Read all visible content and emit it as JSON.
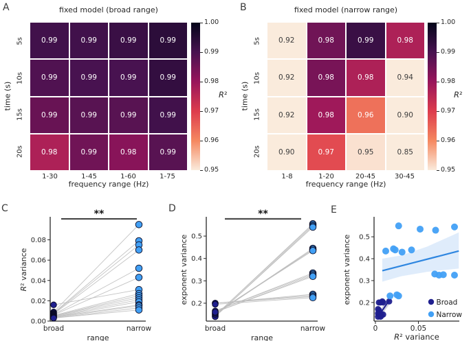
{
  "colors": {
    "broad_navy": "#20208f",
    "narrow_blue": "#42a0f5",
    "dot_edge": "#0b0b25",
    "pair_line": "#bdbdbd",
    "regression_blue": "#2e86e0",
    "band_blue": "rgba(80,150,235,0.18)",
    "broad_band_gray": "rgba(130,130,160,0.35)",
    "axis_dark": "#262626",
    "sig_black": "#000000",
    "sig_gray": "#4d4d4d",
    "annot_light": "#ffffff",
    "annot_dark": "#3c3c3c",
    "rocket_stops": [
      "#030519",
      "#481250",
      "#98155b",
      "#dd3c4d",
      "#f58860",
      "#faebdc"
    ]
  },
  "chart_data": [
    {
      "type": "heatmap",
      "panel": "A",
      "title": "fixed model (broad range)",
      "xlabel": "frequency range (Hz)",
      "ylabel": "time (s)",
      "row_labels": [
        "5s",
        "10s",
        "15s",
        "20s"
      ],
      "col_labels": [
        "1-30",
        "1-45",
        "1-60",
        "1-75"
      ],
      "values": [
        [
          "0.99",
          "0.99",
          "0.99",
          "0.99"
        ],
        [
          "0.99",
          "0.99",
          "0.99",
          "0.99"
        ],
        [
          "0.99",
          "0.99",
          "0.99",
          "0.99"
        ],
        [
          "0.98",
          "0.99",
          "0.98",
          "0.99"
        ]
      ],
      "color_values": [
        [
          0.991,
          0.991,
          0.992,
          0.994
        ],
        [
          0.989,
          0.99,
          0.99,
          0.993
        ],
        [
          0.986,
          0.988,
          0.988,
          0.991
        ],
        [
          0.977,
          0.985,
          0.982,
          0.988
        ]
      ],
      "colorbar": {
        "ticks": [
          "1.00",
          "0.99",
          "0.98",
          "0.97",
          "0.96",
          "0.95"
        ],
        "label": "R²",
        "vmin": 0.95,
        "vmax": 1.0
      }
    },
    {
      "type": "heatmap",
      "panel": "B",
      "title": "fixed model (narrow range)",
      "xlabel": "frequency range (Hz)",
      "ylabel": "time (s)",
      "row_labels": [
        "5s",
        "10s",
        "15s",
        "20s"
      ],
      "col_labels": [
        "1-8",
        "1-20",
        "20-45",
        "30-45"
      ],
      "values": [
        [
          "0.92",
          "0.98",
          "0.99",
          "0.98"
        ],
        [
          "0.92",
          "0.98",
          "0.98",
          "0.94"
        ],
        [
          "0.92",
          "0.98",
          "0.96",
          "0.90"
        ],
        [
          "0.90",
          "0.97",
          "0.95",
          "0.85"
        ]
      ],
      "color_values": [
        [
          0.92,
          0.985,
          0.992,
          0.977
        ],
        [
          0.92,
          0.984,
          0.977,
          0.94
        ],
        [
          0.92,
          0.979,
          0.963,
          0.9
        ],
        [
          0.9,
          0.968,
          0.951,
          0.85
        ]
      ],
      "colorbar": {
        "ticks": [
          "1.00",
          "0.99",
          "0.98",
          "0.97",
          "0.96",
          "0.95"
        ],
        "label": "R²",
        "vmin": 0.95,
        "vmax": 1.0
      }
    },
    {
      "type": "paired-line",
      "panel": "C",
      "ylabel": "R² variance",
      "xlabel": "range",
      "categories": [
        "broad",
        "narrow"
      ],
      "significance": "**",
      "yticks": [
        0.0,
        0.02,
        0.04,
        0.06,
        0.08
      ],
      "ylim": [
        0,
        0.1013
      ],
      "pairs": [
        [
          0.016,
          0.031
        ],
        [
          0.009,
          0.095
        ],
        [
          0.008,
          0.079
        ],
        [
          0.0075,
          0.075
        ],
        [
          0.007,
          0.07
        ],
        [
          0.0065,
          0.052
        ],
        [
          0.006,
          0.043
        ],
        [
          0.0055,
          0.027
        ],
        [
          0.005,
          0.025
        ],
        [
          0.005,
          0.023
        ],
        [
          0.0045,
          0.021
        ],
        [
          0.004,
          0.019
        ],
        [
          0.004,
          0.016
        ],
        [
          0.0035,
          0.015
        ],
        [
          0.003,
          0.013
        ],
        [
          0.003,
          0.011
        ]
      ]
    },
    {
      "type": "paired-line",
      "panel": "D",
      "ylabel": "exponent variance",
      "xlabel": "range",
      "categories": [
        "broad",
        "narrow"
      ],
      "significance": "**",
      "yticks": [
        0.2,
        0.3,
        0.4,
        0.5
      ],
      "ylim": [
        0.12,
        0.58
      ],
      "pairs": [
        [
          0.145,
          0.555
        ],
        [
          0.145,
          0.55
        ],
        [
          0.14,
          0.545
        ],
        [
          0.14,
          0.54
        ],
        [
          0.15,
          0.445
        ],
        [
          0.15,
          0.44
        ],
        [
          0.155,
          0.44
        ],
        [
          0.155,
          0.435
        ],
        [
          0.165,
          0.335
        ],
        [
          0.165,
          0.33
        ],
        [
          0.16,
          0.325
        ],
        [
          0.16,
          0.32
        ],
        [
          0.2,
          0.24
        ],
        [
          0.2,
          0.235
        ],
        [
          0.2,
          0.23
        ],
        [
          0.195,
          0.225
        ]
      ]
    },
    {
      "type": "scatter",
      "panel": "E",
      "xlabel": "R² variance",
      "ylabel": "exponent variance",
      "xticks": [
        0,
        0.05
      ],
      "yticks": [
        0.2,
        0.3,
        0.4,
        0.5
      ],
      "xlim": [
        -0.002,
        0.098
      ],
      "ylim": [
        0.115,
        0.585
      ],
      "legend": [
        "Broad",
        "Narrow"
      ],
      "series": [
        {
          "name": "Broad",
          "points": [
            [
              0.004,
              0.2
            ],
            [
              0.006,
              0.2
            ],
            [
              0.008,
              0.205
            ],
            [
              0.009,
              0.2
            ],
            [
              0.016,
              0.205
            ],
            [
              0.003,
              0.17
            ],
            [
              0.004,
              0.165
            ],
            [
              0.005,
              0.155
            ],
            [
              0.003,
              0.15
            ],
            [
              0.006,
              0.15
            ],
            [
              0.004,
              0.145
            ],
            [
              0.005,
              0.14
            ],
            [
              0.003,
              0.135
            ],
            [
              0.006,
              0.135
            ],
            [
              0.007,
              0.14
            ],
            [
              0.009,
              0.145
            ]
          ]
        },
        {
          "name": "Narrow",
          "points": [
            [
              0.027,
              0.55
            ],
            [
              0.052,
              0.535
            ],
            [
              0.07,
              0.53
            ],
            [
              0.092,
              0.545
            ],
            [
              0.012,
              0.435
            ],
            [
              0.021,
              0.445
            ],
            [
              0.023,
              0.44
            ],
            [
              0.031,
              0.43
            ],
            [
              0.042,
              0.44
            ],
            [
              0.069,
              0.33
            ],
            [
              0.074,
              0.325
            ],
            [
              0.079,
              0.327
            ],
            [
              0.092,
              0.325
            ],
            [
              0.017,
              0.23
            ],
            [
              0.025,
              0.235
            ],
            [
              0.027,
              0.23
            ]
          ]
        }
      ],
      "regression": {
        "narrow_line": [
          [
            0.008,
            0.345
          ],
          [
            0.097,
            0.435
          ]
        ],
        "narrow_band_top": [
          [
            0.008,
            0.4
          ],
          [
            0.03,
            0.415
          ],
          [
            0.06,
            0.455
          ],
          [
            0.097,
            0.52
          ]
        ],
        "narrow_band_bottom": [
          [
            0.008,
            0.295
          ],
          [
            0.03,
            0.32
          ],
          [
            0.06,
            0.34
          ],
          [
            0.097,
            0.355
          ]
        ],
        "broad_line": [
          [
            0.003,
            0.135
          ],
          [
            0.017,
            0.215
          ]
        ],
        "broad_band_top": [
          [
            0.003,
            0.15
          ],
          [
            0.017,
            0.235
          ]
        ],
        "broad_band_bottom": [
          [
            0.003,
            0.12
          ],
          [
            0.017,
            0.195
          ]
        ]
      }
    }
  ]
}
